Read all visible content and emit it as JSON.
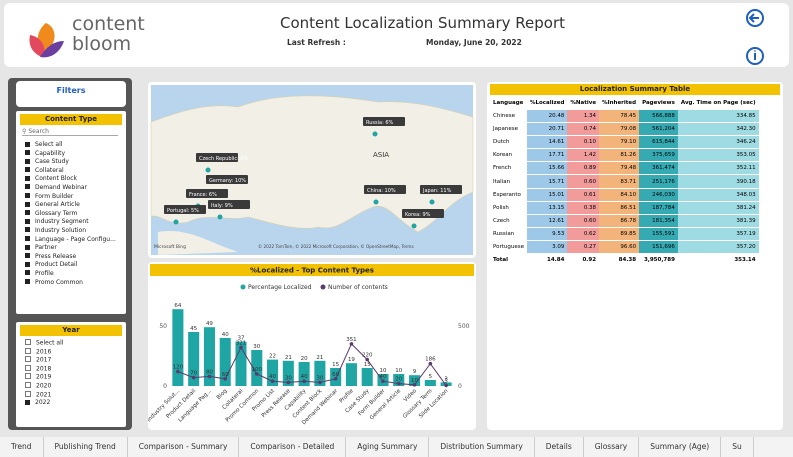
{
  "header": {
    "logo_line1": "content",
    "logo_line2": "bloom",
    "title": "Content Localization Summary Report",
    "refresh_label": "Last Refresh :",
    "refresh_date": "Monday, June 20, 2022"
  },
  "filters": {
    "title": "Filters"
  },
  "content_type": {
    "title": "Content Type",
    "search": "Search",
    "items": [
      "Select all",
      "Capability",
      "Case Study",
      "Collateral",
      "Content Block",
      "Demand Webinar",
      "Form Builder",
      "General Article",
      "Glossary Term",
      "Industry Segment",
      "Industry Solution",
      "Language - Page Configu...",
      "Partner",
      "Press Release",
      "Product Detail",
      "Profile",
      "Promo Common"
    ]
  },
  "year": {
    "title": "Year",
    "items": [
      "Select all",
      "2016",
      "2017",
      "2018",
      "2019",
      "2020",
      "2021",
      "2022"
    ]
  },
  "map": {
    "labels": [
      "Russia: 6%",
      "Czech Republic: 6%",
      "Germany: 10%",
      "France: 6%",
      "Italy: 9%",
      "Portugal: 5%",
      "China: 10%",
      "Japan: 11%",
      "Korea: 9%"
    ],
    "region": "ASIA",
    "brand": "Microsoft Bing",
    "attribution": "© 2022 TomTom, © 2022 Microsoft Corporation, © OpenStreetMap, Terms"
  },
  "table": {
    "title": "Localization Summary Table",
    "columns": [
      "Language",
      "%Localized",
      "%Native",
      "%Inherited",
      "Pageviews",
      "Avg. Time on Page (sec)"
    ],
    "rows": [
      [
        "Chinese",
        "20.48",
        "1.34",
        "78.45",
        "566,888",
        "334.85"
      ],
      [
        "Japanese",
        "20.71",
        "0.74",
        "79.08",
        "561,204",
        "342.30"
      ],
      [
        "Dutch",
        "14.61",
        "0.10",
        "79.10",
        "615,844",
        "346.24"
      ],
      [
        "Korean",
        "17.71",
        "1.42",
        "81.26",
        "375,659",
        "353.05"
      ],
      [
        "French",
        "15.66",
        "0.89",
        "79.48",
        "361,474",
        "352.11"
      ],
      [
        "Italian",
        "15.71",
        "0.60",
        "83.71",
        "251,176",
        "390.18"
      ],
      [
        "Esperanto",
        "15.01",
        "0.61",
        "84.10",
        "246,030",
        "348.03"
      ],
      [
        "Polish",
        "13.15",
        "0.38",
        "86.51",
        "187,784",
        "381.24"
      ],
      [
        "Czech",
        "12.61",
        "0.60",
        "86.78",
        "181,354",
        "381.39"
      ],
      [
        "Russian",
        "9.53",
        "0.62",
        "89.85",
        "155,591",
        "357.19"
      ],
      [
        "Portuguese",
        "3.09",
        "0.27",
        "96.60",
        "151,696",
        "357.20"
      ]
    ],
    "total": [
      "Total",
      "14.84",
      "0.92",
      "84.38",
      "3,950,789",
      "353.14"
    ]
  },
  "chart_data": {
    "type": "combo",
    "title": "%Localized - Top Content Types",
    "categories": [
      "Industry Solut...",
      "Product Detail",
      "Language Pag...",
      "Blog",
      "Collateral",
      "Promo Common",
      "Promo List",
      "Press Release",
      "Capability",
      "Content Block",
      "Demand Webinar",
      "Profile",
      "Case Study",
      "Form Builder",
      "General Article",
      "Video",
      "Glossary Term",
      "Slide Location"
    ],
    "series": [
      {
        "name": "Percentage Localized",
        "color": "#1fa5a3",
        "values": [
          64,
          45,
          49,
          40,
          37,
          30,
          22,
          21,
          20,
          21,
          15,
          19,
          15,
          10,
          10,
          9,
          5,
          3
        ]
      },
      {
        "name": "Number of contents",
        "color": "#5b3a6e",
        "axis": "y2",
        "values": [
          120,
          70,
          80,
          60,
          321,
          100,
          40,
          30,
          40,
          30,
          60,
          351,
          220,
          40,
          20,
          10,
          186,
          5
        ]
      }
    ],
    "ylim": [
      0,
      70
    ],
    "yticks": [
      0,
      50
    ],
    "y2lim": [
      0,
      700
    ],
    "y2ticks": [
      0,
      500
    ]
  },
  "tabs": [
    "Trend",
    "Publishing Trend",
    "Comparison - Summary",
    "Comparison - Detailed",
    "Aging Summary",
    "Distribution Summary",
    "Details",
    "Glossary",
    "Summary (Age)",
    "Su"
  ]
}
